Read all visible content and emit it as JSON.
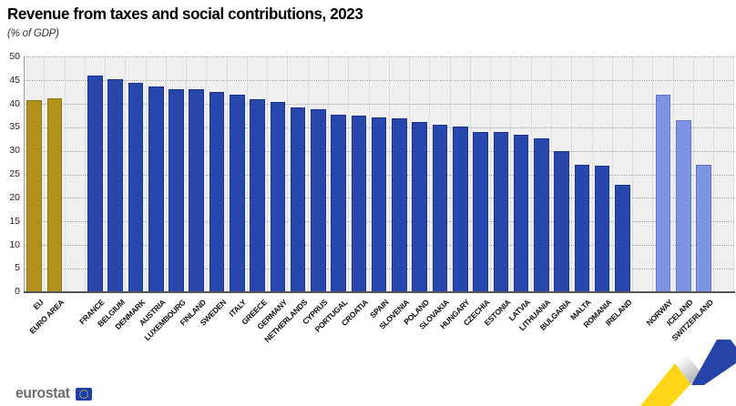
{
  "title": "Revenue from taxes and social contributions, 2023",
  "subtitle": "(% of GDP)",
  "footer": {
    "logo_text": "eurostat",
    "flag_icon": "eu-flag-icon"
  },
  "colors": {
    "aggregate_bar": "#b2921e",
    "aggregate_border": "#8f7414",
    "member_bar": "#2847ac",
    "member_border": "#1b338a",
    "non_eu_bar": "#7e94e0",
    "non_eu_border": "#5c76c9",
    "plot_background": "#f0f0f0",
    "ribbon_yellow": "#ffd617",
    "ribbon_blue": "#2644a7",
    "flag_blue": "#1d3fae",
    "flag_stars": "#ffd617"
  },
  "chart_data": {
    "type": "bar",
    "title": "Revenue from taxes and social contributions, 2023",
    "subtitle": "(% of GDP)",
    "ylabel": "% of GDP",
    "xlabel": "",
    "ylim": [
      0,
      50
    ],
    "yticks": [
      0,
      5,
      10,
      15,
      20,
      25,
      30,
      35,
      40,
      45,
      50
    ],
    "grid": "horizontal-dotted",
    "legend_position": "none",
    "groups": [
      {
        "name": "aggregates",
        "color": "#b2921e",
        "categories": [
          "EU",
          "EURO AREA"
        ],
        "values": [
          40.7,
          41.2
        ]
      },
      {
        "name": "eu-members",
        "color": "#2847ac",
        "categories": [
          "FRANCE",
          "BELGIUM",
          "DENMARK",
          "AUSTRIA",
          "LUXEMBOURG",
          "FINLAND",
          "SWEDEN",
          "ITALY",
          "GREECE",
          "GERMANY",
          "NETHERLANDS",
          "CYPRUS",
          "PORTUGAL",
          "CROATIA",
          "SPAIN",
          "SLOVENIA",
          "POLAND",
          "SLOVAKIA",
          "HUNGARY",
          "CZECHIA",
          "ESTONIA",
          "LATVIA",
          "LITHUANIA",
          "BULGARIA",
          "MALTA",
          "ROMANIA",
          "IRELAND"
        ],
        "values": [
          46.0,
          45.2,
          44.4,
          43.7,
          43.1,
          43.0,
          42.5,
          41.9,
          40.9,
          40.4,
          39.3,
          38.8,
          37.7,
          37.5,
          37.1,
          37.0,
          36.1,
          35.5,
          35.2,
          34.1,
          34.1,
          33.4,
          32.6,
          29.9,
          27.1,
          26.9,
          22.7
        ]
      },
      {
        "name": "non-eu",
        "color": "#7e94e0",
        "categories": [
          "NORWAY",
          "ICELAND",
          "SWITZERLAND"
        ],
        "values": [
          42.0,
          36.5,
          27.0
        ]
      }
    ]
  }
}
